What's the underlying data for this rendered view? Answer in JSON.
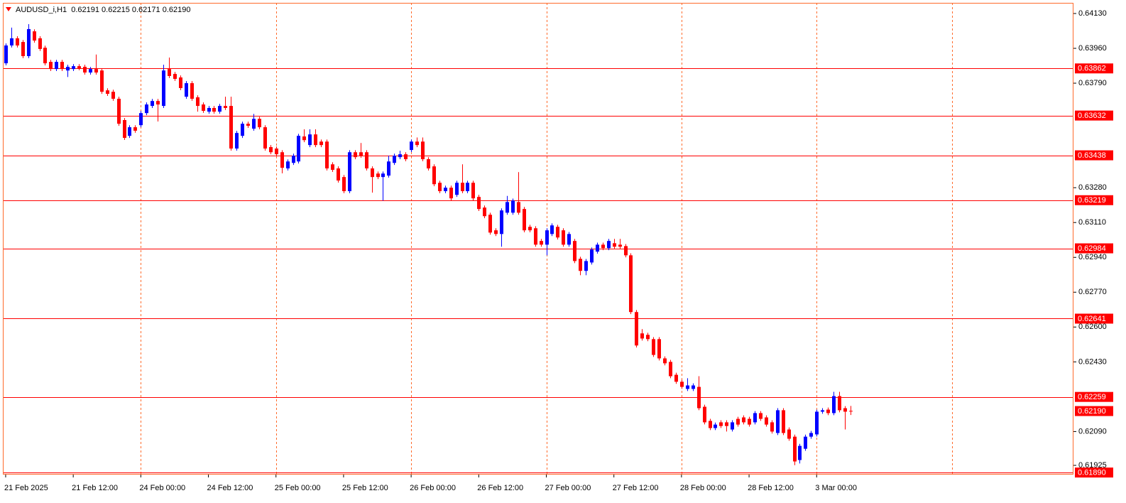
{
  "chart_data": {
    "type": "candlestick",
    "title": "AUDUSD_i,H1  0.62191 0.62215 0.62171 0.62190",
    "up_color": "#0000ff",
    "down_color": "#ff0000",
    "grid_color": "#ff6a2a",
    "level_color": "#ff0000",
    "categories": [
      "21 Feb 2025",
      null,
      null,
      null,
      null,
      null,
      null,
      null,
      null,
      null,
      null,
      null,
      "21 Feb 12:00",
      null,
      null,
      null,
      null,
      null,
      null,
      null,
      null,
      null,
      null,
      null,
      "24 Feb 00:00",
      null,
      null,
      null,
      null,
      null,
      null,
      null,
      null,
      null,
      null,
      null,
      "24 Feb 12:00",
      null,
      null,
      null,
      null,
      null,
      null,
      null,
      null,
      null,
      null,
      null,
      "25 Feb 00:00",
      null,
      null,
      null,
      null,
      null,
      null,
      null,
      null,
      null,
      null,
      null,
      "25 Feb 12:00",
      null,
      null,
      null,
      null,
      null,
      null,
      null,
      null,
      null,
      null,
      null,
      "26 Feb 00:00",
      null,
      null,
      null,
      null,
      null,
      null,
      null,
      null,
      null,
      null,
      null,
      "26 Feb 12:00",
      null,
      null,
      null,
      null,
      null,
      null,
      null,
      null,
      null,
      null,
      null,
      "27 Feb 00:00",
      null,
      null,
      null,
      null,
      null,
      null,
      null,
      null,
      null,
      null,
      null,
      "27 Feb 12:00",
      null,
      null,
      null,
      null,
      null,
      null,
      null,
      null,
      null,
      null,
      null,
      "28 Feb 00:00",
      null,
      null,
      null,
      null,
      null,
      null,
      null,
      null,
      null,
      null,
      null,
      "28 Feb 12:00",
      null,
      null,
      null,
      null,
      null,
      null,
      null,
      null,
      null,
      null,
      null,
      "3 Mar 00:00",
      null,
      null,
      null,
      null,
      null,
      null
    ],
    "open": [
      0.63887,
      0.63974,
      0.64009,
      0.63991,
      0.63922,
      0.64043,
      0.64009,
      0.63963,
      0.63894,
      0.63859,
      0.63894,
      0.63852,
      0.63859,
      0.63873,
      0.6387,
      0.63842,
      0.63859,
      0.63852,
      0.63755,
      0.63748,
      0.63714,
      0.6361,
      0.63533,
      0.63575,
      0.63585,
      0.63644,
      0.63679,
      0.63703,
      0.63679,
      0.63859,
      0.63835,
      0.63818,
      0.63724,
      0.6379,
      0.63721,
      0.63686,
      0.63651,
      0.63669,
      0.63651,
      0.63679,
      0.63679,
      0.63471,
      0.63533,
      0.63592,
      0.63568,
      0.63616,
      0.63575,
      0.63478,
      0.63471,
      0.63453,
      0.63374,
      0.63401,
      0.63408,
      0.6353,
      0.63488,
      0.6354,
      0.63505,
      0.63505,
      0.63394,
      0.63374,
      0.63332,
      0.63263,
      0.63453,
      0.63453,
      0.63453,
      0.63374,
      0.63349,
      0.63332,
      0.63339,
      0.63401,
      0.63429,
      0.63443,
      0.63464,
      0.63505,
      0.63505,
      0.63419,
      0.63384,
      0.63304,
      0.63263,
      0.6328,
      0.63245,
      0.63304,
      0.63263,
      0.63304,
      0.63235,
      0.63183,
      0.63148,
      0.63072,
      0.63054,
      0.63158,
      0.63158,
      0.6321,
      0.63176,
      0.63089,
      0.63082,
      0.6302,
      0.63002,
      0.63054,
      0.63089,
      0.63072,
      0.63002,
      0.6302,
      0.62933,
      0.62874,
      0.62915,
      0.62968,
      0.63002,
      0.62985,
      0.63009,
      0.63002,
      0.62995,
      0.6295,
      0.62673,
      0.62569,
      0.62562,
      0.62541,
      0.62541,
      0.62447,
      0.6243,
      0.62367,
      0.62333,
      0.62298,
      0.62298,
      0.62308,
      0.62211,
      0.62142,
      0.62107,
      0.62135,
      0.62135,
      0.621,
      0.62152,
      0.62159,
      0.62152,
      0.62135,
      0.6218,
      0.62159,
      0.62135,
      0.62083,
      0.62194,
      0.621,
      0.62065,
      0.61951,
      0.62006,
      0.62065,
      0.62076,
      0.62187,
      0.62197,
      0.6218,
      0.62263,
      0.62204,
      0.62191
    ],
    "high": [
      0.63984,
      0.64061,
      0.64019,
      0.64001,
      0.64078,
      0.64053,
      0.64019,
      0.63973,
      0.63904,
      0.63904,
      0.63904,
      0.6388,
      0.63883,
      0.63883,
      0.6388,
      0.63869,
      0.6393,
      0.63862,
      0.63765,
      0.63758,
      0.63724,
      0.6362,
      0.63585,
      0.63585,
      0.63654,
      0.63696,
      0.63713,
      0.63713,
      0.6388,
      0.63915,
      0.63845,
      0.63828,
      0.638,
      0.638,
      0.63731,
      0.63696,
      0.63679,
      0.63679,
      0.63689,
      0.63724,
      0.63724,
      0.63557,
      0.63602,
      0.63602,
      0.6364,
      0.63626,
      0.63585,
      0.63488,
      0.63481,
      0.63463,
      0.63418,
      0.63446,
      0.63543,
      0.63565,
      0.63565,
      0.63565,
      0.63515,
      0.63515,
      0.63404,
      0.63384,
      0.63342,
      0.63463,
      0.63463,
      0.63498,
      0.63463,
      0.63384,
      0.63359,
      0.63359,
      0.63436,
      0.63446,
      0.6346,
      0.63453,
      0.63515,
      0.63525,
      0.63525,
      0.63429,
      0.63394,
      0.63314,
      0.6329,
      0.6329,
      0.63314,
      0.63394,
      0.63314,
      0.63314,
      0.63245,
      0.63193,
      0.63158,
      0.63082,
      0.63179,
      0.6324,
      0.63227,
      0.63356,
      0.63186,
      0.63099,
      0.63092,
      0.6303,
      0.63082,
      0.63106,
      0.63099,
      0.63082,
      0.63064,
      0.6303,
      0.62943,
      0.62932,
      0.62988,
      0.63012,
      0.63012,
      0.6303,
      0.6303,
      0.6303,
      0.63005,
      0.6296,
      0.62683,
      0.6259,
      0.62572,
      0.62551,
      0.62551,
      0.62457,
      0.6244,
      0.62377,
      0.62343,
      0.6235,
      0.62325,
      0.6236,
      0.62221,
      0.62152,
      0.62134,
      0.62145,
      0.62145,
      0.62145,
      0.62162,
      0.62169,
      0.62162,
      0.6219,
      0.6219,
      0.62169,
      0.62145,
      0.62204,
      0.62204,
      0.6211,
      0.62075,
      0.6203,
      0.62075,
      0.62093,
      0.62197,
      0.62204,
      0.62207,
      0.62284,
      0.62284,
      0.62214,
      0.62215
    ],
    "low": [
      0.63877,
      0.63964,
      0.63964,
      0.63912,
      0.63912,
      0.63988,
      0.63947,
      0.63877,
      0.63849,
      0.63849,
      0.63849,
      0.6382,
      0.63849,
      0.63853,
      0.63832,
      0.63832,
      0.63832,
      0.63738,
      0.63728,
      0.63704,
      0.63582,
      0.63513,
      0.63523,
      0.63548,
      0.63575,
      0.63634,
      0.63669,
      0.63603,
      0.63669,
      0.63815,
      0.63801,
      0.63756,
      0.63714,
      0.63704,
      0.63651,
      0.63645,
      0.63641,
      0.63641,
      0.63641,
      0.63659,
      0.63461,
      0.63461,
      0.63523,
      0.63572,
      0.63558,
      0.63565,
      0.63461,
      0.63443,
      0.63433,
      0.6335,
      0.63364,
      0.63391,
      0.63398,
      0.63502,
      0.63478,
      0.63478,
      0.63478,
      0.63364,
      0.63357,
      0.63305,
      0.63253,
      0.63253,
      0.63419,
      0.63426,
      0.63364,
      0.63256,
      0.63322,
      0.63217,
      0.63329,
      0.63391,
      0.63419,
      0.63409,
      0.63454,
      0.63478,
      0.63409,
      0.63364,
      0.63287,
      0.63253,
      0.63253,
      0.63218,
      0.63235,
      0.63253,
      0.63253,
      0.63218,
      0.63166,
      0.63131,
      0.63051,
      0.63044,
      0.62992,
      0.63148,
      0.63148,
      0.63148,
      0.63062,
      0.63062,
      0.62992,
      0.62992,
      0.6295,
      0.63044,
      0.63027,
      0.62992,
      0.62992,
      0.62912,
      0.62853,
      0.62853,
      0.62905,
      0.62958,
      0.62975,
      0.62975,
      0.62982,
      0.62982,
      0.6294,
      0.62663,
      0.625,
      0.62534,
      0.62531,
      0.62454,
      0.62437,
      0.62413,
      0.6235,
      0.62323,
      0.62298,
      0.62288,
      0.62288,
      0.62194,
      0.62125,
      0.62097,
      0.62097,
      0.62107,
      0.6209,
      0.6209,
      0.62114,
      0.62125,
      0.62114,
      0.62125,
      0.62142,
      0.62114,
      0.6208,
      0.62073,
      0.62073,
      0.62045,
      0.61926,
      0.61934,
      0.61996,
      0.62055,
      0.62066,
      0.62177,
      0.6217,
      0.6217,
      0.62184,
      0.621,
      0.62171
    ],
    "close": [
      0.63974,
      0.64009,
      0.63974,
      0.63922,
      0.64054,
      0.63998,
      0.63957,
      0.63887,
      0.63859,
      0.63894,
      0.63859,
      0.6387,
      0.63873,
      0.63863,
      0.63842,
      0.63859,
      0.63842,
      0.63748,
      0.63738,
      0.63714,
      0.63592,
      0.63523,
      0.63575,
      0.63558,
      0.63644,
      0.63686,
      0.63703,
      0.63686,
      0.63852,
      0.63825,
      0.63811,
      0.63766,
      0.6379,
      0.63714,
      0.63679,
      0.63655,
      0.63669,
      0.63651,
      0.63679,
      0.63669,
      0.63471,
      0.63547,
      0.63592,
      0.63582,
      0.63616,
      0.63575,
      0.63471,
      0.63453,
      0.63443,
      0.63377,
      0.63408,
      0.63436,
      0.63533,
      0.63512,
      0.6354,
      0.63488,
      0.63488,
      0.63374,
      0.63367,
      0.63315,
      0.63263,
      0.63453,
      0.63429,
      0.63436,
      0.63374,
      0.63332,
      0.63332,
      0.63349,
      0.63408,
      0.63436,
      0.63443,
      0.63419,
      0.63505,
      0.63488,
      0.63419,
      0.63374,
      0.63297,
      0.63263,
      0.6328,
      0.63228,
      0.63304,
      0.63263,
      0.63304,
      0.63228,
      0.63176,
      0.63141,
      0.63061,
      0.63054,
      0.63169,
      0.6321,
      0.63217,
      0.63158,
      0.63072,
      0.63072,
      0.63002,
      0.63002,
      0.63072,
      0.63096,
      0.63037,
      0.63002,
      0.63054,
      0.62922,
      0.62874,
      0.62922,
      0.62978,
      0.63002,
      0.62985,
      0.6302,
      0.62992,
      0.62992,
      0.6295,
      0.62673,
      0.6251,
      0.62544,
      0.62541,
      0.62464,
      0.62447,
      0.62423,
      0.6236,
      0.62333,
      0.62308,
      0.62315,
      0.62315,
      0.62204,
      0.62135,
      0.62107,
      0.62124,
      0.62117,
      0.62117,
      0.62135,
      0.62124,
      0.62135,
      0.62124,
      0.6218,
      0.62152,
      0.62124,
      0.6209,
      0.62194,
      0.62083,
      0.62055,
      0.61944,
      0.6202,
      0.62065,
      0.62083,
      0.62187,
      0.62194,
      0.6218,
      0.62263,
      0.62194,
      0.62187,
      0.6219
    ],
    "xlim": [
      -0.5,
      189.6
    ],
    "xgrid": [
      24,
      48,
      72,
      96,
      120,
      144,
      168
    ],
    "ylim": [
      0.6188,
      0.64182
    ],
    "yticks": [
      {
        "value": 0.6413,
        "label": "0.64130"
      },
      {
        "value": 0.6396,
        "label": "0.63960"
      },
      {
        "value": 0.6379,
        "label": "0.63790"
      },
      {
        "value": 0.6328,
        "label": "0.63280"
      },
      {
        "value": 0.6311,
        "label": "0.63110"
      },
      {
        "value": 0.6294,
        "label": "0.62940"
      },
      {
        "value": 0.6277,
        "label": "0.62770"
      },
      {
        "value": 0.626,
        "label": "0.62600"
      },
      {
        "value": 0.6243,
        "label": "0.62430"
      },
      {
        "value": 0.6209,
        "label": "0.62090"
      },
      {
        "value": 0.61925,
        "label": "0.61925"
      }
    ],
    "levels": [
      {
        "value": 0.63862,
        "label": "0.63862"
      },
      {
        "value": 0.63632,
        "label": "0.63632"
      },
      {
        "value": 0.63438,
        "label": "0.63438"
      },
      {
        "value": 0.63219,
        "label": "0.63219"
      },
      {
        "value": 0.62984,
        "label": "0.62984"
      },
      {
        "value": 0.62641,
        "label": "0.62641"
      },
      {
        "value": 0.62259,
        "label": "0.62259"
      },
      {
        "value": 0.6189,
        "label": "0.61890"
      }
    ],
    "last_price": {
      "value": 0.6219,
      "label": "0.62190"
    }
  }
}
